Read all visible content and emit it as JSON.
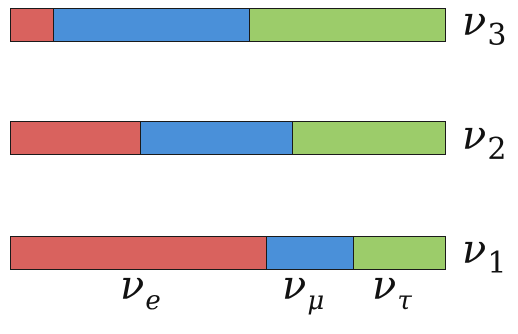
{
  "colors": {
    "nu_e": "#d9625e",
    "nu_mu": "#4a90d9",
    "nu_tau": "#9ccc6a"
  },
  "flavors": [
    {
      "symbol": "ν",
      "subscript": "e"
    },
    {
      "symbol": "ν",
      "subscript": "μ"
    },
    {
      "symbol": "ν",
      "subscript": "τ"
    }
  ],
  "mass_states": [
    {
      "symbol": "ν",
      "subscript": "3",
      "fractions": {
        "nu_e": 0.1,
        "nu_mu": 0.45,
        "nu_tau": 0.45
      }
    },
    {
      "symbol": "ν",
      "subscript": "2",
      "fractions": {
        "nu_e": 0.3,
        "nu_mu": 0.35,
        "nu_tau": 0.35
      }
    },
    {
      "symbol": "ν",
      "subscript": "1",
      "fractions": {
        "nu_e": 0.59,
        "nu_mu": 0.2,
        "nu_tau": 0.21
      }
    }
  ]
}
